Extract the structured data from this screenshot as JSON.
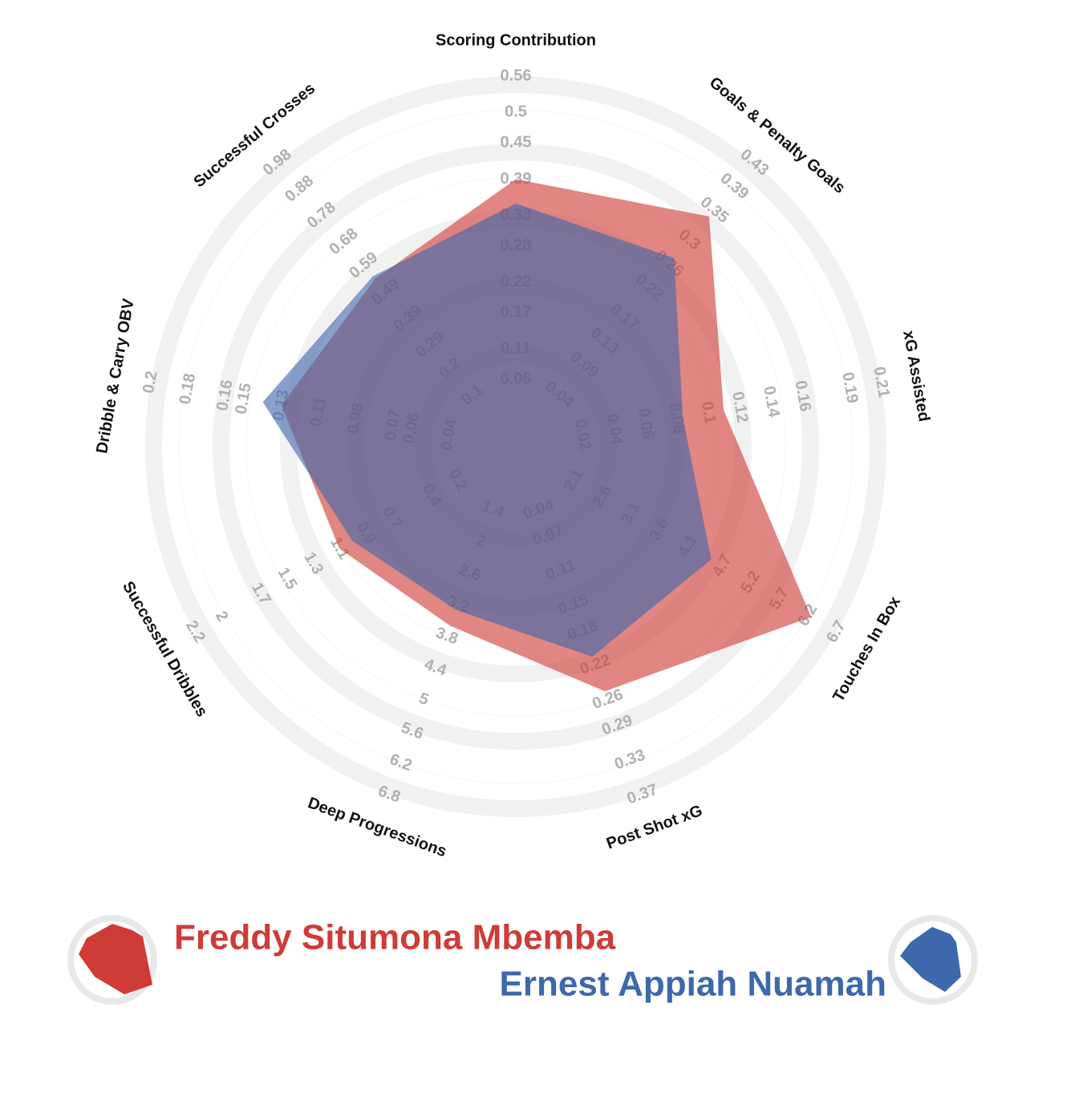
{
  "chart_data": {
    "type": "radar",
    "axes": [
      {
        "name": "Scoring Contribution",
        "range": [
          0.06,
          0.56
        ],
        "ticks": [
          0.06,
          0.11,
          0.17,
          0.22,
          0.28,
          0.33,
          0.39,
          0.45,
          0.5,
          0.56
        ]
      },
      {
        "name": "Goals & Penalty Goals",
        "range": [
          0.04,
          0.43
        ],
        "ticks": [
          0.04,
          0.09,
          0.13,
          0.17,
          0.22,
          0.26,
          0.3,
          0.35,
          0.39,
          0.43
        ]
      },
      {
        "name": "xG Assisted",
        "range": [
          0.02,
          0.21
        ],
        "ticks": [
          0.02,
          0.04,
          0.06,
          0.08,
          0.1,
          0.12,
          0.14,
          0.16,
          0.19,
          0.21
        ]
      },
      {
        "name": "Touches In Box",
        "range": [
          2.1,
          6.7
        ],
        "ticks": [
          2.1,
          2.6,
          3.1,
          3.6,
          4.1,
          4.7,
          5.2,
          5.7,
          6.2,
          6.7
        ]
      },
      {
        "name": "Post Shot xG",
        "range": [
          0.04,
          0.37
        ],
        "ticks": [
          0.04,
          0.07,
          0.11,
          0.15,
          0.18,
          0.22,
          0.26,
          0.29,
          0.33,
          0.37
        ]
      },
      {
        "name": "Deep Progressions",
        "range": [
          1.4,
          6.8
        ],
        "ticks": [
          1.4,
          2.0,
          2.6,
          3.2,
          3.8,
          4.4,
          5.0,
          5.6,
          6.2,
          6.8
        ]
      },
      {
        "name": "Successful Dribbles",
        "range": [
          0.2,
          2.2
        ],
        "ticks": [
          0.2,
          0.4,
          0.7,
          0.9,
          1.1,
          1.3,
          1.5,
          1.7,
          2.0,
          2.2
        ]
      },
      {
        "name": "Dribble & Carry OBV",
        "range": [
          0.04,
          0.2
        ],
        "ticks": [
          0.04,
          0.06,
          0.07,
          0.09,
          0.11,
          0.13,
          0.15,
          0.16,
          0.18,
          0.2
        ]
      },
      {
        "name": "Successful Crosses",
        "range": [
          0.1,
          0.98
        ],
        "ticks": [
          0.1,
          0.2,
          0.29,
          0.39,
          0.49,
          0.59,
          0.68,
          0.78,
          0.88,
          0.98
        ]
      }
    ],
    "series": [
      {
        "name": "Freddy Situmona Mbemba",
        "color": "#cf3b36",
        "values": [
          0.39,
          0.34,
          0.11,
          6.25,
          0.25,
          3.6,
          1.1,
          0.13,
          0.54
        ]
      },
      {
        "name": "Ernest Appiah Nuamah",
        "color": "#3d68ac",
        "values": [
          0.35,
          0.27,
          0.084,
          4.5,
          0.21,
          3.3,
          1.0,
          0.14,
          0.55
        ]
      }
    ]
  }
}
